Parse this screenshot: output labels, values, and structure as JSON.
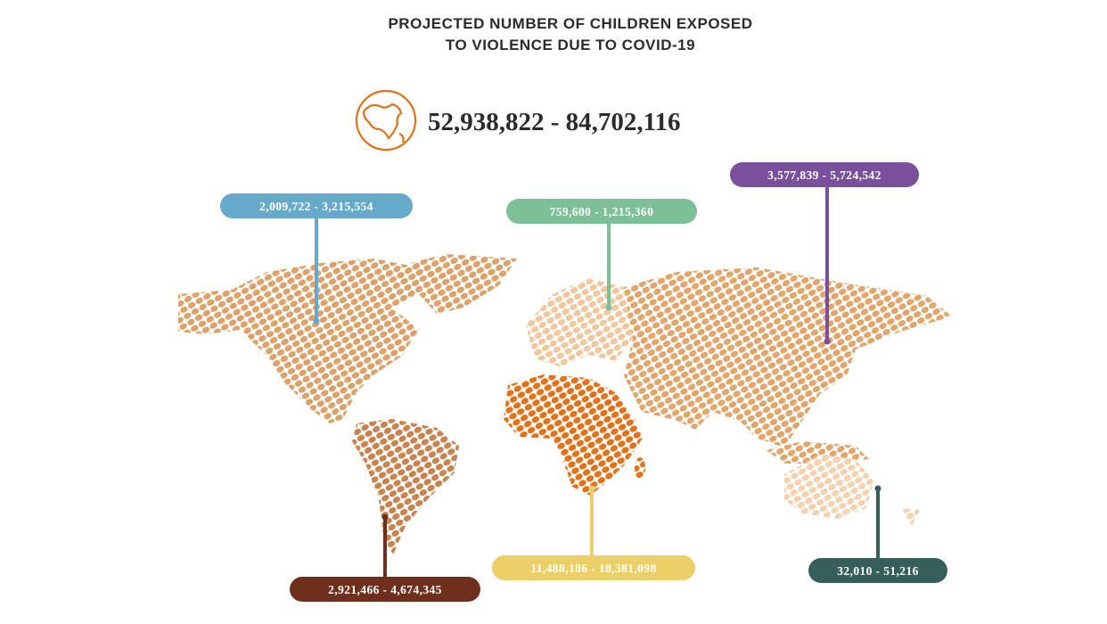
{
  "title": [
    "PROJECTED NUMBER OF CHILDREN EXPOSED",
    "TO VIOLENCE DUE TO COVID-19"
  ],
  "total": "52,938,822 - 84,702,116",
  "regions": [
    {
      "label": "2,009,722 - 3,215,554",
      "color": "#67a9c9"
    },
    {
      "label": "759,600 - 1,215,360",
      "color": "#7dbf96"
    },
    {
      "label": "3,577,839 - 5,724,542",
      "color": "#7a509c"
    },
    {
      "label": "2,921,466 - 4,674,345",
      "color": "#6e2f1c"
    },
    {
      "label": "11,488,186 - 18,381,098",
      "color": "#ecd067"
    },
    {
      "label": "32,010 - 51,216",
      "color": "#365f5b"
    }
  ]
}
